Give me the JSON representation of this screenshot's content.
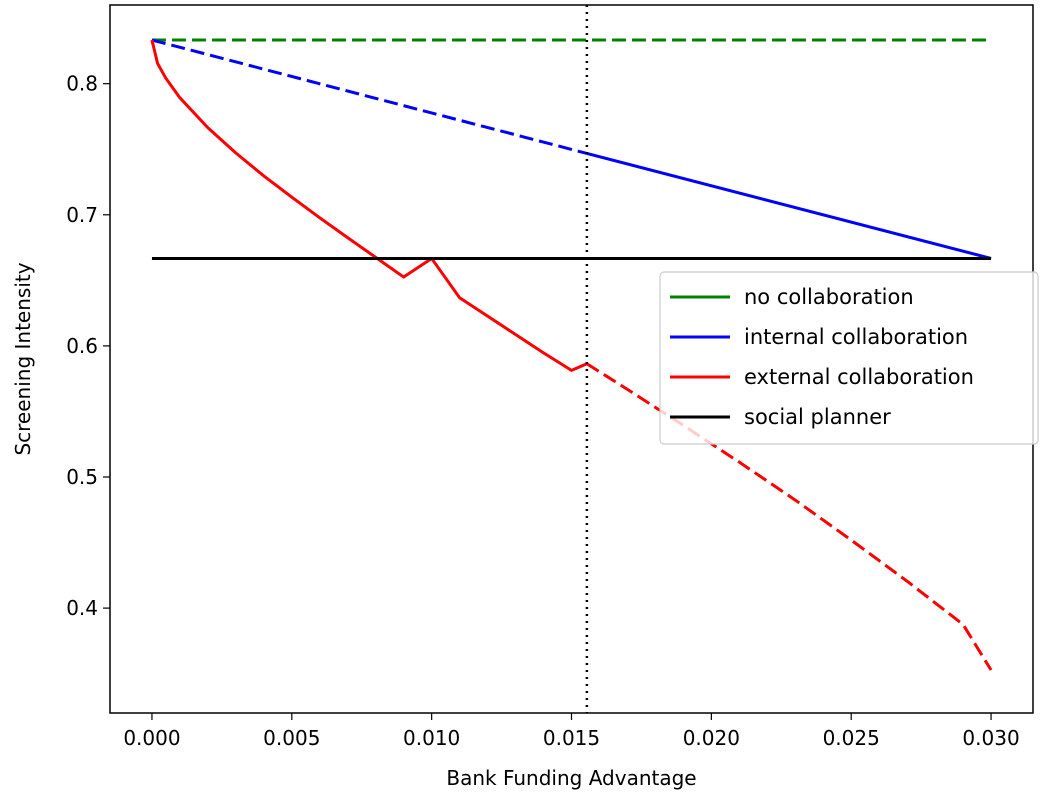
{
  "chart_data": {
    "type": "line",
    "title": "",
    "xlabel": "Bank Funding Advantage",
    "ylabel": "Screening Intensity",
    "xlim": [
      -0.0015,
      0.0315
    ],
    "ylim": [
      0.32,
      0.86
    ],
    "xticks": [
      0.0,
      0.005,
      0.01,
      0.015,
      0.02,
      0.025,
      0.03
    ],
    "xtick_labels": [
      "0.000",
      "0.005",
      "0.010",
      "0.015",
      "0.020",
      "0.025",
      "0.030"
    ],
    "yticks": [
      0.4,
      0.5,
      0.6,
      0.7,
      0.8
    ],
    "ytick_labels": [
      "0.4",
      "0.5",
      "0.6",
      "0.7",
      "0.8"
    ],
    "grid": false,
    "legend_position": "center-right",
    "vline": {
      "x": 0.01555,
      "style": "dotted",
      "color": "#000000"
    },
    "series": [
      {
        "name": "no collaboration",
        "color": "#008000",
        "legend_style": "solid",
        "segments": [
          {
            "style": "dashed",
            "x": [
              0.0,
              0.03
            ],
            "y": [
              0.8333,
              0.8333
            ]
          }
        ]
      },
      {
        "name": "internal collaboration",
        "color": "#0000ff",
        "legend_style": "solid",
        "segments": [
          {
            "style": "dashed",
            "x": [
              0.0,
              0.01555
            ],
            "y": [
              0.8333,
              0.7468
            ]
          },
          {
            "style": "solid",
            "x": [
              0.01555,
              0.03
            ],
            "y": [
              0.7468,
              0.6667
            ]
          }
        ]
      },
      {
        "name": "external collaboration",
        "color": "#ff0000",
        "legend_style": "solid",
        "segments": [
          {
            "style": "solid",
            "x": [
              0.0,
              0.0002,
              0.0005,
              0.001,
              0.002,
              0.003,
              0.004,
              0.005,
              0.006,
              0.007,
              0.008,
              0.009,
              0.01,
              0.011,
              0.012,
              0.013,
              0.014,
              0.015,
              0.01555
            ],
            "y": [
              0.8333,
              0.8155,
              0.804,
              0.7892,
              0.7664,
              0.7471,
              0.7296,
              0.7134,
              0.6977,
              0.6825,
              0.6675,
              0.6525,
              0.6667,
              0.6367,
              0.6227,
              0.6087,
              0.5947,
              0.5813,
              0.5864
            ]
          },
          {
            "style": "dashed",
            "x": [
              0.01555,
              0.017,
              0.019,
              0.021,
              0.023,
              0.025,
              0.027,
              0.029,
              0.03
            ],
            "y": [
              0.5864,
              0.5668,
              0.5394,
              0.5113,
              0.4824,
              0.4519,
              0.4205,
              0.3875,
              0.3528
            ]
          }
        ]
      },
      {
        "name": "social planner",
        "color": "#000000",
        "legend_style": "solid",
        "segments": [
          {
            "style": "solid",
            "x": [
              0.0,
              0.03
            ],
            "y": [
              0.6667,
              0.6667
            ]
          }
        ]
      }
    ]
  }
}
